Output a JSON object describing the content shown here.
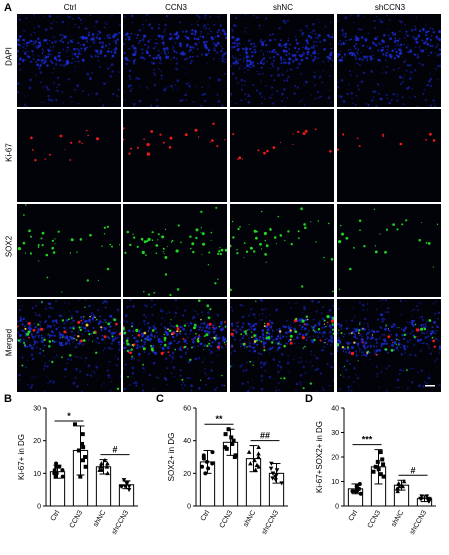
{
  "figure": {
    "panel_letters": [
      "A",
      "B",
      "C",
      "D"
    ],
    "columns": [
      "Ctrl",
      "CCN3",
      "shNC",
      "shCCN3"
    ],
    "rows": [
      "DAPI",
      "Ki-67",
      "SOX2",
      "Merged"
    ],
    "colors": {
      "dapi": "#1b2bd6",
      "ki67": "#ff1a1a",
      "sox2": "#22e022",
      "background": "#03030a",
      "grid_line": "#ffffff"
    }
  },
  "chart_data": [
    {
      "panel": "B",
      "type": "bar",
      "categories": [
        "Ctrl",
        "CCN3",
        "shNC",
        "shCCN3"
      ],
      "values": [
        10.5,
        17,
        12,
        6.5
      ],
      "errors": [
        2,
        7.5,
        2.2,
        1.2
      ],
      "points": [
        [
          9,
          10,
          11,
          12,
          12,
          11,
          9,
          10,
          13
        ],
        [
          9,
          12,
          14,
          17,
          19,
          22,
          25,
          15,
          18
        ],
        [
          10,
          11,
          12,
          12,
          13,
          14,
          12,
          11,
          13
        ],
        [
          5,
          6,
          6,
          7,
          7,
          8,
          7,
          6,
          6
        ]
      ],
      "markers": [
        "circle",
        "square",
        "triangle",
        "triangle-down"
      ],
      "ylabel": "Ki-67+ in DG",
      "ylim": [
        0,
        30
      ],
      "yticks": [
        0,
        10,
        20,
        30
      ],
      "significance": [
        {
          "from": 0,
          "to": 1,
          "label": "*"
        },
        {
          "from": 2,
          "to": 3,
          "label": "#"
        }
      ]
    },
    {
      "panel": "C",
      "type": "bar",
      "categories": [
        "Ctrl",
        "CCN3",
        "shNC",
        "shCCN3"
      ],
      "values": [
        27,
        39,
        29,
        20
      ],
      "errors": [
        7,
        8,
        8,
        6
      ],
      "points": [
        [
          20,
          24,
          27,
          30,
          33,
          26,
          23,
          29,
          31
        ],
        [
          30,
          35,
          38,
          42,
          47,
          40,
          36,
          44,
          31
        ],
        [
          22,
          25,
          28,
          32,
          36,
          33,
          26,
          30,
          24
        ],
        [
          14,
          17,
          19,
          22,
          26,
          20,
          18,
          23,
          16
        ]
      ],
      "markers": [
        "circle",
        "square",
        "triangle",
        "triangle-down"
      ],
      "ylabel": "SOX2+ in DG",
      "ylim": [
        0,
        60
      ],
      "yticks": [
        0,
        20,
        40,
        60
      ],
      "significance": [
        {
          "from": 0,
          "to": 1,
          "label": "**"
        },
        {
          "from": 2,
          "to": 3,
          "label": "##"
        }
      ]
    },
    {
      "panel": "D",
      "type": "bar",
      "categories": [
        "Ctrl",
        "CCN3",
        "shNC",
        "shCCN3"
      ],
      "values": [
        7,
        16,
        8.5,
        3
      ],
      "errors": [
        2,
        7,
        2,
        1.2
      ],
      "points": [
        [
          5,
          6,
          7,
          8,
          9,
          6,
          7,
          8,
          6
        ],
        [
          12,
          14,
          16,
          18,
          22,
          15,
          13,
          17,
          19
        ],
        [
          6,
          7,
          8,
          9,
          10,
          9,
          8,
          7,
          9
        ],
        [
          2,
          2,
          3,
          3,
          4,
          3,
          2,
          4,
          3
        ]
      ],
      "markers": [
        "circle",
        "square",
        "triangle",
        "triangle-down"
      ],
      "ylabel": "Ki-67+SOX2+ in DG",
      "ylim": [
        0,
        40
      ],
      "yticks": [
        0,
        10,
        20,
        30,
        40
      ],
      "significance": [
        {
          "from": 0,
          "to": 1,
          "label": "***"
        },
        {
          "from": 2,
          "to": 3,
          "label": "#"
        }
      ]
    }
  ]
}
